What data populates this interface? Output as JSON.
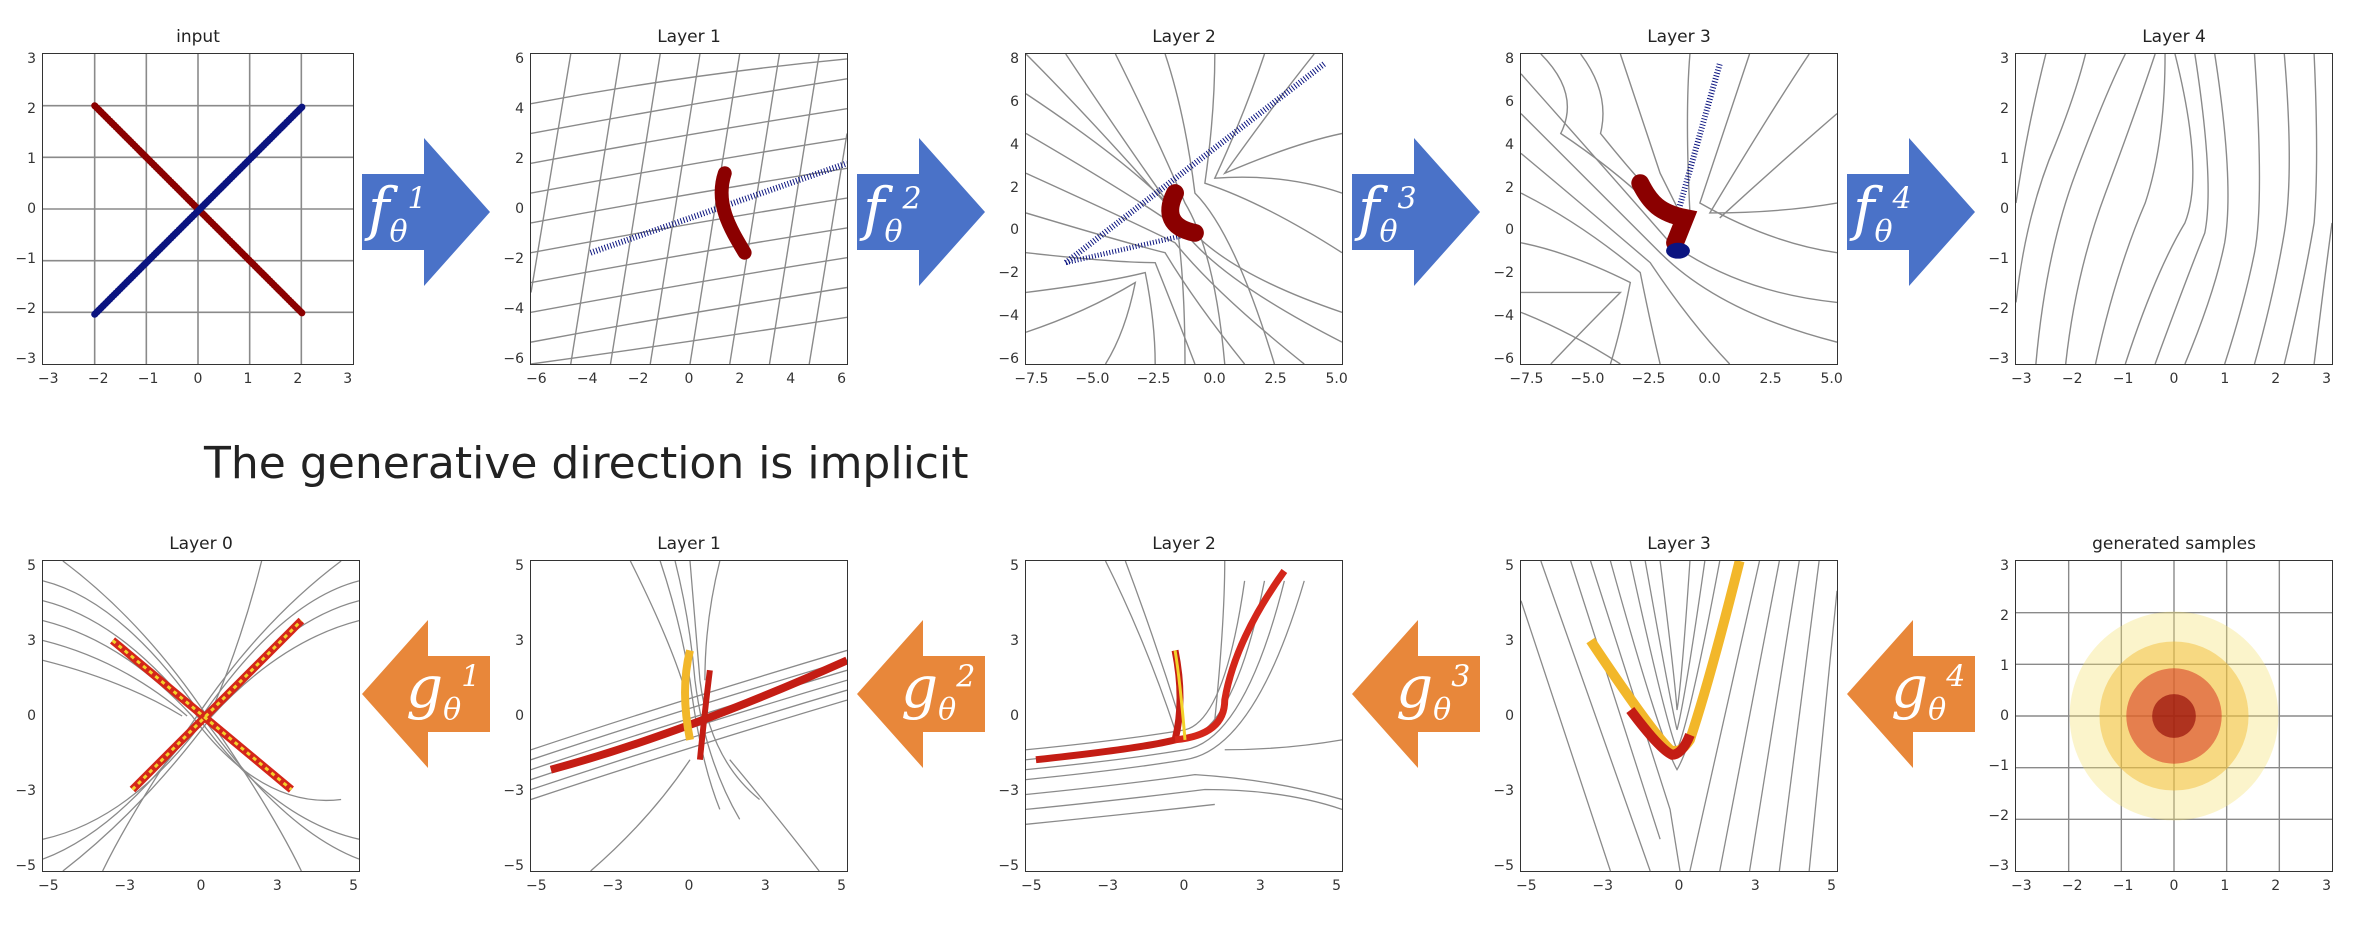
{
  "caption": "The generative direction is implicit",
  "colors": {
    "arrow_forward": "#4a72c8",
    "arrow_backward": "#e8873a",
    "class_a": "#8b0000",
    "class_b": "#0b1480",
    "grid": "#8a8a8a"
  },
  "top_row": [
    {
      "title": "input",
      "xticks": [
        "−3",
        "−2",
        "−1",
        "0",
        "1",
        "2",
        "3"
      ],
      "yticks": [
        "3",
        "2",
        "1",
        "0",
        "−1",
        "−2",
        "−3"
      ]
    },
    {
      "title": "Layer 1",
      "xticks": [
        "−6",
        "−4",
        "−2",
        "0",
        "2",
        "4",
        "6"
      ],
      "yticks": [
        "6",
        "4",
        "2",
        "0",
        "−2",
        "−4",
        "−6"
      ]
    },
    {
      "title": "Layer 2",
      "xticks": [
        "−7.5",
        "−5.0",
        "−2.5",
        "0.0",
        "2.5",
        "5.0"
      ],
      "yticks": [
        "8",
        "6",
        "4",
        "2",
        "0",
        "−2",
        "−4",
        "−6"
      ]
    },
    {
      "title": "Layer 3",
      "xticks": [
        "−7.5",
        "−5.0",
        "−2.5",
        "0.0",
        "2.5",
        "5.0"
      ],
      "yticks": [
        "8",
        "6",
        "4",
        "2",
        "0",
        "−2",
        "−4",
        "−6"
      ]
    },
    {
      "title": "Layer 4",
      "xticks": [
        "−3",
        "−2",
        "−1",
        "0",
        "1",
        "2",
        "3"
      ],
      "yticks": [
        "3",
        "2",
        "1",
        "0",
        "−1",
        "−2",
        "−3"
      ]
    }
  ],
  "bottom_row": [
    {
      "title": "Layer 0",
      "xticks": [
        "−5",
        "−3",
        "0",
        "3",
        "5"
      ],
      "yticks": [
        "5",
        "3",
        "0",
        "−3",
        "−5"
      ]
    },
    {
      "title": "Layer 1",
      "xticks": [
        "−5",
        "−3",
        "0",
        "3",
        "5"
      ],
      "yticks": [
        "5",
        "3",
        "0",
        "−3",
        "−5"
      ]
    },
    {
      "title": "Layer 2",
      "xticks": [
        "−5",
        "−3",
        "0",
        "3",
        "5"
      ],
      "yticks": [
        "5",
        "3",
        "0",
        "−3",
        "−5"
      ]
    },
    {
      "title": "Layer 3",
      "xticks": [
        "−5",
        "−3",
        "0",
        "3",
        "5"
      ],
      "yticks": [
        "5",
        "3",
        "0",
        "−3",
        "−5"
      ]
    },
    {
      "title": "generated samples",
      "xticks": [
        "−3",
        "−2",
        "−1",
        "0",
        "1",
        "2",
        "3"
      ],
      "yticks": [
        "3",
        "2",
        "1",
        "0",
        "−1",
        "−2",
        "−3"
      ]
    }
  ],
  "forward_arrows": [
    {
      "fn": "f",
      "sub": "θ",
      "sup": "1"
    },
    {
      "fn": "f",
      "sub": "θ",
      "sup": "2"
    },
    {
      "fn": "f",
      "sub": "θ",
      "sup": "3"
    },
    {
      "fn": "f",
      "sub": "θ",
      "sup": "4"
    }
  ],
  "backward_arrows": [
    {
      "fn": "g",
      "sub": "θ",
      "sup": "1"
    },
    {
      "fn": "g",
      "sub": "θ",
      "sup": "2"
    },
    {
      "fn": "g",
      "sub": "θ",
      "sup": "3"
    },
    {
      "fn": "g",
      "sub": "θ",
      "sup": "4"
    }
  ]
}
